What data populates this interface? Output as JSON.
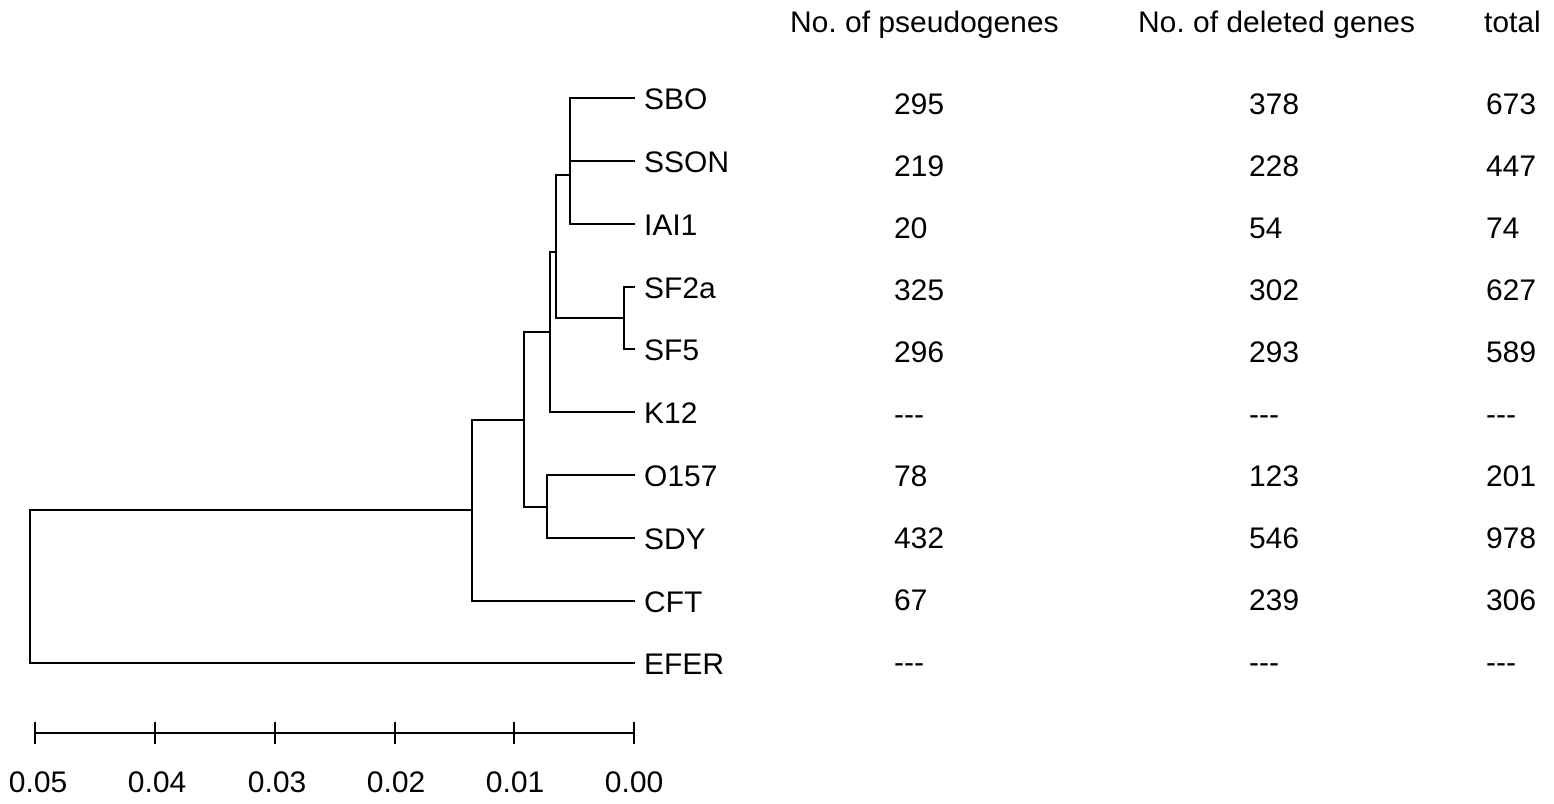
{
  "headers": {
    "pseudogenes": "No. of pseudogenes",
    "deleted": "No. of deleted genes",
    "total": "total"
  },
  "rows": [
    {
      "taxon": "SBO",
      "pseudogenes": "295",
      "deleted": "378",
      "total": "673"
    },
    {
      "taxon": "SSON",
      "pseudogenes": "219",
      "deleted": "228",
      "total": "447"
    },
    {
      "taxon": "IAI1",
      "pseudogenes": "20",
      "deleted": "54",
      "total": "74"
    },
    {
      "taxon": "SF2a",
      "pseudogenes": "325",
      "deleted": "302",
      "total": "627"
    },
    {
      "taxon": "SF5",
      "pseudogenes": "296",
      "deleted": "293",
      "total": "589"
    },
    {
      "taxon": "K12",
      "pseudogenes": "---",
      "deleted": "---",
      "total": "---"
    },
    {
      "taxon": "O157",
      "pseudogenes": "78",
      "deleted": "123",
      "total": "201"
    },
    {
      "taxon": "SDY",
      "pseudogenes": "432",
      "deleted": "546",
      "total": "978"
    },
    {
      "taxon": "CFT",
      "pseudogenes": "67",
      "deleted": "239",
      "total": "306"
    },
    {
      "taxon": "EFER",
      "pseudogenes": "---",
      "deleted": "---",
      "total": "---"
    }
  ],
  "scale": {
    "ticks": [
      "0.05",
      "0.04",
      "0.03",
      "0.02",
      "0.01",
      "0.00"
    ]
  }
}
